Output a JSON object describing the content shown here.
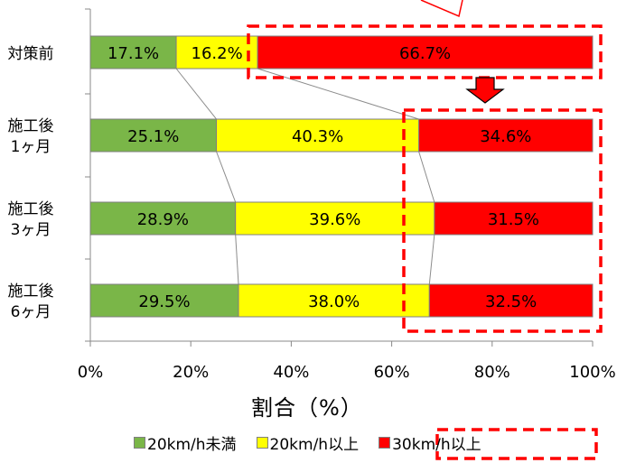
{
  "chart_data": {
    "type": "bar",
    "orientation": "horizontal-stacked-100",
    "categories": [
      "対策前",
      "施工後\n1ヶ月",
      "施工後\n3ヶ月",
      "施工後\n6ヶ月"
    ],
    "series": [
      {
        "name": "20km/h未満",
        "color": "#7ab648",
        "values": [
          17.1,
          25.1,
          28.9,
          29.5
        ]
      },
      {
        "name": "20km/h以上",
        "color": "#ffff00",
        "values": [
          16.2,
          40.3,
          39.6,
          38.0
        ]
      },
      {
        "name": "30km/h以上",
        "color": "#ff0000",
        "values": [
          66.7,
          34.6,
          31.5,
          32.5
        ]
      }
    ],
    "data_labels": [
      [
        "17.1%",
        "16.2%",
        "66.7%"
      ],
      [
        "25.1%",
        "40.3%",
        "34.6%"
      ],
      [
        "28.9%",
        "39.6%",
        "31.5%"
      ],
      [
        "29.5%",
        "38.0%",
        "32.5%"
      ]
    ],
    "xlabel": "割合（%）",
    "xlim": [
      0,
      100
    ],
    "xticks": [
      "0%",
      "20%",
      "40%",
      "60%",
      "80%",
      "100%"
    ],
    "legend_position": "bottom",
    "grid": false,
    "annotations": [
      "dashed red box highlighting 30km/h以上 share",
      "red down arrow"
    ]
  }
}
